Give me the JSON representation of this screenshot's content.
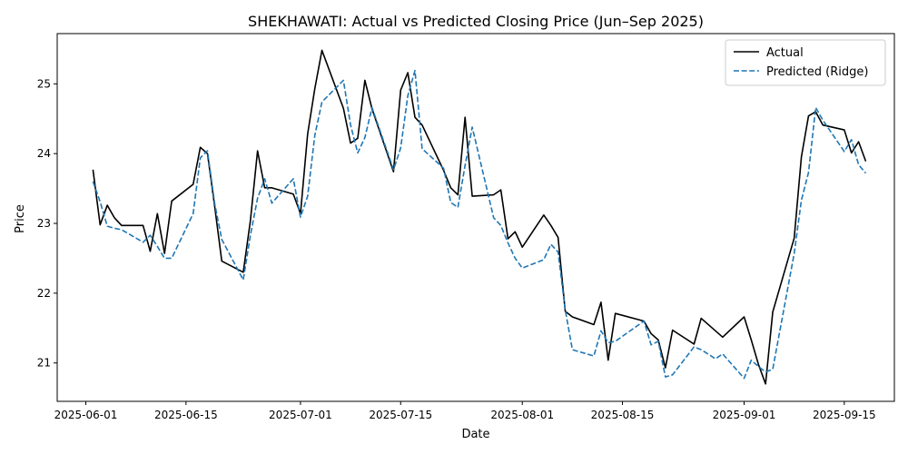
{
  "chart_data": {
    "type": "line",
    "title": "SHEKHAWATI: Actual vs Predicted Closing Price (Jun–Sep 2025)",
    "xlabel": "Date",
    "ylabel": "Price",
    "xlim": [
      "2025-05-28",
      "2025-09-22"
    ],
    "ylim": [
      20.45,
      25.72
    ],
    "x_ticks": [
      "2025-06-01",
      "2025-06-15",
      "2025-07-01",
      "2025-07-15",
      "2025-08-01",
      "2025-08-15",
      "2025-09-01",
      "2025-09-15"
    ],
    "y_ticks": [
      21,
      22,
      23,
      24,
      25
    ],
    "grid": false,
    "legend_position": "top-right",
    "series": [
      {
        "name": "Actual",
        "color": "#000000",
        "style": "solid",
        "points": [
          [
            "2025-06-02",
            23.77
          ],
          [
            "2025-06-03",
            22.98
          ],
          [
            "2025-06-04",
            23.26
          ],
          [
            "2025-06-05",
            23.08
          ],
          [
            "2025-06-06",
            22.97
          ],
          [
            "2025-06-09",
            22.97
          ],
          [
            "2025-06-10",
            22.6
          ],
          [
            "2025-06-11",
            23.14
          ],
          [
            "2025-06-12",
            22.57
          ],
          [
            "2025-06-13",
            23.32
          ],
          [
            "2025-06-16",
            23.56
          ],
          [
            "2025-06-17",
            24.09
          ],
          [
            "2025-06-18",
            24.0
          ],
          [
            "2025-06-19",
            23.25
          ],
          [
            "2025-06-20",
            22.46
          ],
          [
            "2025-06-23",
            22.3
          ],
          [
            "2025-06-24",
            23.04
          ],
          [
            "2025-06-25",
            24.04
          ],
          [
            "2025-06-26",
            23.51
          ],
          [
            "2025-06-27",
            23.51
          ],
          [
            "2025-06-30",
            23.42
          ],
          [
            "2025-07-01",
            23.14
          ],
          [
            "2025-07-02",
            24.28
          ],
          [
            "2025-07-03",
            24.93
          ],
          [
            "2025-07-04",
            25.48
          ],
          [
            "2025-07-07",
            24.65
          ],
          [
            "2025-07-08",
            24.15
          ],
          [
            "2025-07-09",
            24.22
          ],
          [
            "2025-07-10",
            25.05
          ],
          [
            "2025-07-11",
            24.64
          ],
          [
            "2025-07-14",
            23.74
          ],
          [
            "2025-07-15",
            24.91
          ],
          [
            "2025-07-16",
            25.16
          ],
          [
            "2025-07-17",
            24.52
          ],
          [
            "2025-07-18",
            24.41
          ],
          [
            "2025-07-21",
            23.76
          ],
          [
            "2025-07-22",
            23.51
          ],
          [
            "2025-07-23",
            23.41
          ],
          [
            "2025-07-24",
            24.52
          ],
          [
            "2025-07-25",
            23.39
          ],
          [
            "2025-07-28",
            23.41
          ],
          [
            "2025-07-29",
            23.48
          ],
          [
            "2025-07-30",
            22.78
          ],
          [
            "2025-07-31",
            22.88
          ],
          [
            "2025-08-01",
            22.66
          ],
          [
            "2025-08-04",
            23.12
          ],
          [
            "2025-08-05",
            22.97
          ],
          [
            "2025-08-06",
            22.8
          ],
          [
            "2025-08-07",
            21.74
          ],
          [
            "2025-08-08",
            21.66
          ],
          [
            "2025-08-11",
            21.55
          ],
          [
            "2025-08-12",
            21.87
          ],
          [
            "2025-08-13",
            21.04
          ],
          [
            "2025-08-14",
            21.71
          ],
          [
            "2025-08-18",
            21.6
          ],
          [
            "2025-08-19",
            21.42
          ],
          [
            "2025-08-20",
            21.33
          ],
          [
            "2025-08-21",
            20.93
          ],
          [
            "2025-08-22",
            21.47
          ],
          [
            "2025-08-25",
            21.27
          ],
          [
            "2025-08-26",
            21.64
          ],
          [
            "2025-08-29",
            21.37
          ],
          [
            "2025-09-01",
            21.66
          ],
          [
            "2025-09-02",
            21.33
          ],
          [
            "2025-09-03",
            20.98
          ],
          [
            "2025-09-04",
            20.7
          ],
          [
            "2025-09-05",
            21.73
          ],
          [
            "2025-09-08",
            22.79
          ],
          [
            "2025-09-09",
            23.95
          ],
          [
            "2025-09-10",
            24.54
          ],
          [
            "2025-09-11",
            24.6
          ],
          [
            "2025-09-12",
            24.41
          ],
          [
            "2025-09-15",
            24.34
          ],
          [
            "2025-09-16",
            24.01
          ],
          [
            "2025-09-17",
            24.17
          ],
          [
            "2025-09-18",
            23.89
          ]
        ]
      },
      {
        "name": "Predicted (Ridge)",
        "color": "#1f77b4",
        "style": "dashed",
        "points": [
          [
            "2025-06-02",
            23.6
          ],
          [
            "2025-06-03",
            23.31
          ],
          [
            "2025-06-04",
            22.96
          ],
          [
            "2025-06-05",
            22.93
          ],
          [
            "2025-06-06",
            22.91
          ],
          [
            "2025-06-09",
            22.73
          ],
          [
            "2025-06-10",
            22.83
          ],
          [
            "2025-06-11",
            22.67
          ],
          [
            "2025-06-12",
            22.5
          ],
          [
            "2025-06-13",
            22.5
          ],
          [
            "2025-06-16",
            23.14
          ],
          [
            "2025-06-17",
            23.94
          ],
          [
            "2025-06-18",
            24.04
          ],
          [
            "2025-06-19",
            23.29
          ],
          [
            "2025-06-20",
            22.77
          ],
          [
            "2025-06-23",
            22.19
          ],
          [
            "2025-06-24",
            22.83
          ],
          [
            "2025-06-25",
            23.36
          ],
          [
            "2025-06-26",
            23.64
          ],
          [
            "2025-06-27",
            23.29
          ],
          [
            "2025-06-30",
            23.64
          ],
          [
            "2025-07-01",
            23.09
          ],
          [
            "2025-07-02",
            23.39
          ],
          [
            "2025-07-03",
            24.26
          ],
          [
            "2025-07-04",
            24.74
          ],
          [
            "2025-07-07",
            25.05
          ],
          [
            "2025-07-08",
            24.41
          ],
          [
            "2025-07-09",
            24.01
          ],
          [
            "2025-07-10",
            24.23
          ],
          [
            "2025-07-11",
            24.66
          ],
          [
            "2025-07-14",
            23.77
          ],
          [
            "2025-07-15",
            24.08
          ],
          [
            "2025-07-16",
            24.83
          ],
          [
            "2025-07-17",
            25.19
          ],
          [
            "2025-07-18",
            24.07
          ],
          [
            "2025-07-21",
            23.79
          ],
          [
            "2025-07-22",
            23.3
          ],
          [
            "2025-07-23",
            23.23
          ],
          [
            "2025-07-24",
            23.83
          ],
          [
            "2025-07-25",
            24.38
          ],
          [
            "2025-07-28",
            23.08
          ],
          [
            "2025-07-29",
            22.97
          ],
          [
            "2025-07-30",
            22.72
          ],
          [
            "2025-07-31",
            22.5
          ],
          [
            "2025-08-01",
            22.36
          ],
          [
            "2025-08-04",
            22.48
          ],
          [
            "2025-08-05",
            22.7
          ],
          [
            "2025-08-06",
            22.59
          ],
          [
            "2025-08-07",
            21.76
          ],
          [
            "2025-08-08",
            21.19
          ],
          [
            "2025-08-11",
            21.1
          ],
          [
            "2025-08-12",
            21.46
          ],
          [
            "2025-08-13",
            21.29
          ],
          [
            "2025-08-14",
            21.31
          ],
          [
            "2025-08-18",
            21.6
          ],
          [
            "2025-08-19",
            21.26
          ],
          [
            "2025-08-20",
            21.31
          ],
          [
            "2025-08-21",
            20.8
          ],
          [
            "2025-08-22",
            20.83
          ],
          [
            "2025-08-25",
            21.23
          ],
          [
            "2025-08-26",
            21.19
          ],
          [
            "2025-08-28",
            21.06
          ],
          [
            "2025-08-29",
            21.13
          ],
          [
            "2025-09-01",
            20.78
          ],
          [
            "2025-09-02",
            21.04
          ],
          [
            "2025-09-03",
            20.95
          ],
          [
            "2025-09-04",
            20.87
          ],
          [
            "2025-09-05",
            20.91
          ],
          [
            "2025-09-08",
            22.57
          ],
          [
            "2025-09-09",
            23.33
          ],
          [
            "2025-09-10",
            23.73
          ],
          [
            "2025-09-11",
            24.66
          ],
          [
            "2025-09-12",
            24.48
          ],
          [
            "2025-09-15",
            24.03
          ],
          [
            "2025-09-16",
            24.2
          ],
          [
            "2025-09-17",
            23.84
          ],
          [
            "2025-09-18",
            23.72
          ]
        ]
      }
    ]
  }
}
